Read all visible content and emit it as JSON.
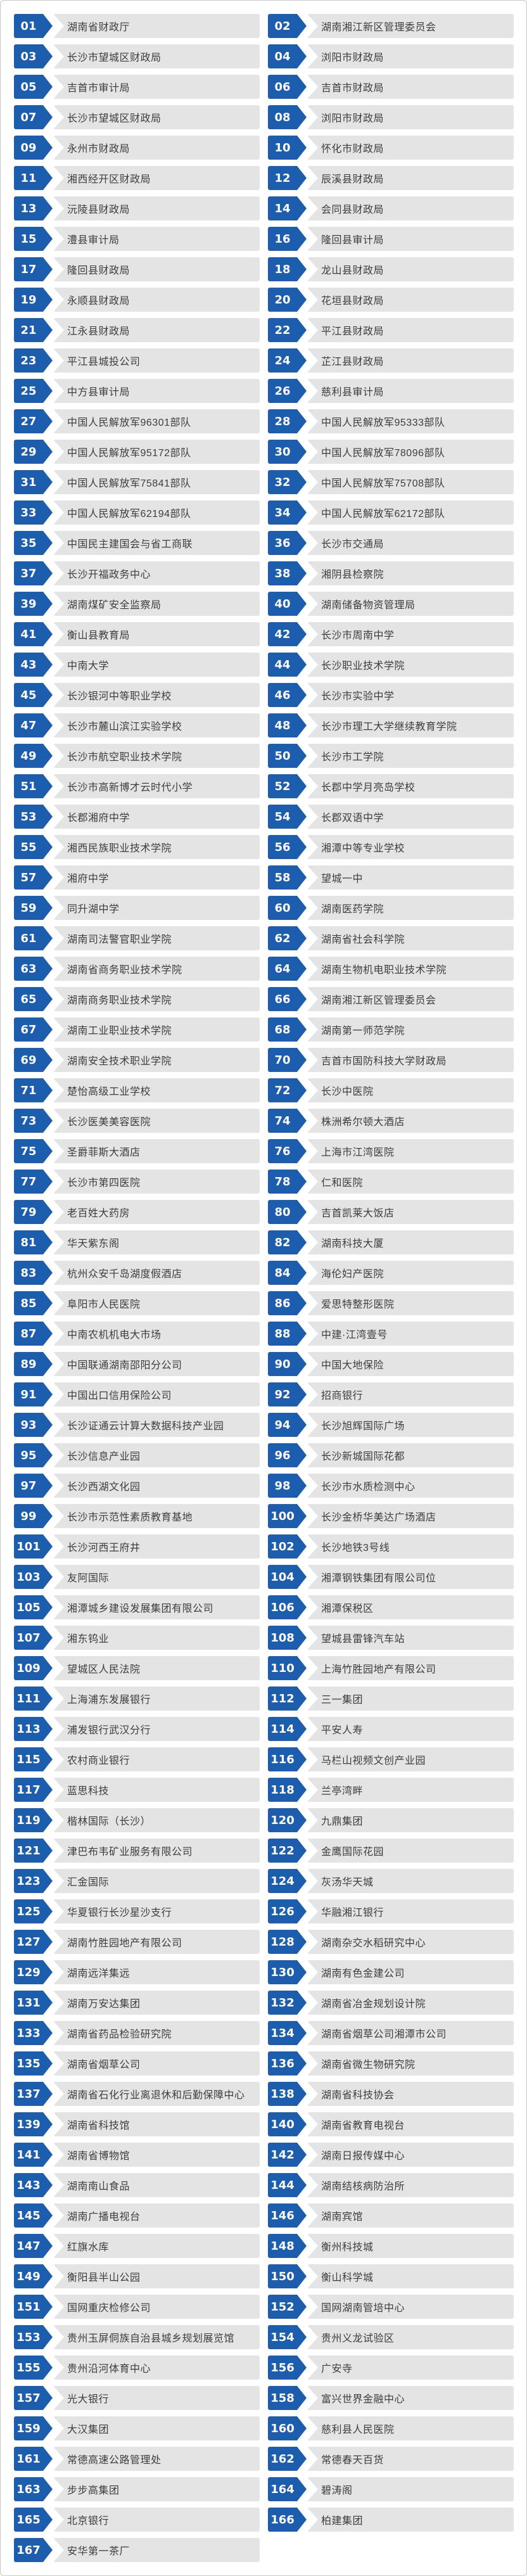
{
  "page": {
    "background": "#ffffff",
    "border_color": "#c9c9c9"
  },
  "item_style": {
    "badge_color": "#1d5dad",
    "bar_color": "#e4e4e4",
    "number_color": "#ffffff",
    "label_color": "#3d3d3d"
  },
  "items": [
    {
      "num": "01",
      "label": "湖南省财政厅"
    },
    {
      "num": "02",
      "label": "湖南湘江新区管理委员会"
    },
    {
      "num": "03",
      "label": "长沙市望城区财政局"
    },
    {
      "num": "04",
      "label": "浏阳市财政局"
    },
    {
      "num": "05",
      "label": "吉首市审计局"
    },
    {
      "num": "06",
      "label": "吉首市财政局"
    },
    {
      "num": "07",
      "label": "长沙市望城区财政局"
    },
    {
      "num": "08",
      "label": "浏阳市财政局"
    },
    {
      "num": "09",
      "label": "永州市财政局"
    },
    {
      "num": "10",
      "label": "怀化市财政局"
    },
    {
      "num": "11",
      "label": "湘西经开区财政局"
    },
    {
      "num": "12",
      "label": "辰溪县财政局"
    },
    {
      "num": "13",
      "label": "沅陵县财政局"
    },
    {
      "num": "14",
      "label": "会同县财政局"
    },
    {
      "num": "15",
      "label": "澧县审计局"
    },
    {
      "num": "16",
      "label": "隆回县审计局"
    },
    {
      "num": "17",
      "label": "隆回县财政局"
    },
    {
      "num": "18",
      "label": "龙山县财政局"
    },
    {
      "num": "19",
      "label": "永顺县财政局"
    },
    {
      "num": "20",
      "label": "花垣县财政局"
    },
    {
      "num": "21",
      "label": "江永县财政局"
    },
    {
      "num": "22",
      "label": "平江县财政局"
    },
    {
      "num": "23",
      "label": "平江县城投公司"
    },
    {
      "num": "24",
      "label": "芷江县财政局"
    },
    {
      "num": "25",
      "label": "中方县审计局"
    },
    {
      "num": "26",
      "label": "慈利县审计局"
    },
    {
      "num": "27",
      "label": "中国人民解放军96301部队"
    },
    {
      "num": "28",
      "label": "中国人民解放军95333部队"
    },
    {
      "num": "29",
      "label": "中国人民解放军95172部队"
    },
    {
      "num": "30",
      "label": "中国人民解放军78096部队"
    },
    {
      "num": "31",
      "label": "中国人民解放军75841部队"
    },
    {
      "num": "32",
      "label": "中国人民解放军75708部队"
    },
    {
      "num": "33",
      "label": "中国人民解放军62194部队"
    },
    {
      "num": "34",
      "label": "中国人民解放军62172部队"
    },
    {
      "num": "35",
      "label": "中国民主建国会与省工商联"
    },
    {
      "num": "36",
      "label": "长沙市交通局"
    },
    {
      "num": "37",
      "label": "长沙开福政务中心"
    },
    {
      "num": "38",
      "label": "湘阴县检察院"
    },
    {
      "num": "39",
      "label": "湖南煤矿安全监察局"
    },
    {
      "num": "40",
      "label": "湖南储备物资管理局"
    },
    {
      "num": "41",
      "label": "衡山县教育局"
    },
    {
      "num": "42",
      "label": "长沙市周南中学"
    },
    {
      "num": "43",
      "label": "中南大学"
    },
    {
      "num": "44",
      "label": "长沙职业技术学院"
    },
    {
      "num": "45",
      "label": "长沙银河中等职业学校"
    },
    {
      "num": "46",
      "label": "长沙市实验中学"
    },
    {
      "num": "47",
      "label": "长沙市麓山滨江实验学校"
    },
    {
      "num": "48",
      "label": "长沙市理工大学继续教育学院"
    },
    {
      "num": "49",
      "label": "长沙市航空职业技术学院"
    },
    {
      "num": "50",
      "label": "长沙市工学院"
    },
    {
      "num": "51",
      "label": "长沙市高新博才云时代小学"
    },
    {
      "num": "52",
      "label": "长郡中学月亮岛学校"
    },
    {
      "num": "53",
      "label": "长郡湘府中学"
    },
    {
      "num": "54",
      "label": "长郡双语中学"
    },
    {
      "num": "55",
      "label": "湘西民族职业技术学院"
    },
    {
      "num": "56",
      "label": "湘潭中等专业学校"
    },
    {
      "num": "57",
      "label": "湘府中学"
    },
    {
      "num": "58",
      "label": "望城一中"
    },
    {
      "num": "59",
      "label": "同升湖中学"
    },
    {
      "num": "60",
      "label": "湖南医药学院"
    },
    {
      "num": "61",
      "label": "湖南司法警官职业学院"
    },
    {
      "num": "62",
      "label": "湖南省社会科学院"
    },
    {
      "num": "63",
      "label": "湖南省商务职业技术学院"
    },
    {
      "num": "64",
      "label": "湖南生物机电职业技术学院"
    },
    {
      "num": "65",
      "label": "湖南商务职业技术学院"
    },
    {
      "num": "66",
      "label": "湖南湘江新区管理委员会"
    },
    {
      "num": "67",
      "label": "湖南工业职业技术学院"
    },
    {
      "num": "68",
      "label": "湖南第一师范学院"
    },
    {
      "num": "69",
      "label": "湖南安全技术职业学院"
    },
    {
      "num": "70",
      "label": "吉首市国防科技大学财政局"
    },
    {
      "num": "71",
      "label": "楚怡高级工业学校"
    },
    {
      "num": "72",
      "label": "长沙中医院"
    },
    {
      "num": "73",
      "label": "长沙医美美容医院"
    },
    {
      "num": "74",
      "label": "株洲希尔顿大酒店"
    },
    {
      "num": "75",
      "label": "圣爵菲斯大酒店"
    },
    {
      "num": "76",
      "label": "上海市江湾医院"
    },
    {
      "num": "77",
      "label": "长沙市第四医院"
    },
    {
      "num": "78",
      "label": "仁和医院"
    },
    {
      "num": "79",
      "label": "老百姓大药房"
    },
    {
      "num": "80",
      "label": "吉首凯莱大饭店"
    },
    {
      "num": "81",
      "label": "华天紫东阁"
    },
    {
      "num": "82",
      "label": "湖南科技大厦"
    },
    {
      "num": "83",
      "label": "杭州众安千岛湖度假酒店"
    },
    {
      "num": "84",
      "label": "海伦妇产医院"
    },
    {
      "num": "85",
      "label": "阜阳市人民医院"
    },
    {
      "num": "86",
      "label": "爱思特整形医院"
    },
    {
      "num": "87",
      "label": "中南农机机电大市场"
    },
    {
      "num": "88",
      "label": "中建·江湾壹号"
    },
    {
      "num": "89",
      "label": "中国联通湖南邵阳分公司"
    },
    {
      "num": "90",
      "label": "中国大地保险"
    },
    {
      "num": "91",
      "label": "中国出口信用保险公司"
    },
    {
      "num": "92",
      "label": "招商银行"
    },
    {
      "num": "93",
      "label": "长沙证通云计算大数据科技产业园"
    },
    {
      "num": "94",
      "label": "长沙旭辉国际广场"
    },
    {
      "num": "95",
      "label": "长沙信息产业园"
    },
    {
      "num": "96",
      "label": "长沙新城国际花都"
    },
    {
      "num": "97",
      "label": "长沙西湖文化园"
    },
    {
      "num": "98",
      "label": "长沙市水质检测中心"
    },
    {
      "num": "99",
      "label": "长沙市示范性素质教育基地"
    },
    {
      "num": "100",
      "label": "长沙金桥华美达广场酒店"
    },
    {
      "num": "101",
      "label": "长沙河西王府井"
    },
    {
      "num": "102",
      "label": "长沙地铁3号线"
    },
    {
      "num": "103",
      "label": "友阿国际"
    },
    {
      "num": "104",
      "label": "湘潭钢铁集团有限公司位"
    },
    {
      "num": "105",
      "label": "湘潭城乡建设发展集团有限公司"
    },
    {
      "num": "106",
      "label": "湘潭保税区"
    },
    {
      "num": "107",
      "label": "湘东钨业"
    },
    {
      "num": "108",
      "label": "望城县雷锋汽车站"
    },
    {
      "num": "109",
      "label": "望城区人民法院"
    },
    {
      "num": "110",
      "label": "上海竹胜园地产有限公司"
    },
    {
      "num": "111",
      "label": "上海浦东发展银行"
    },
    {
      "num": "112",
      "label": "三一集团"
    },
    {
      "num": "113",
      "label": "浦发银行武汉分行"
    },
    {
      "num": "114",
      "label": "平安人寿"
    },
    {
      "num": "115",
      "label": "农村商业银行"
    },
    {
      "num": "116",
      "label": "马栏山视频文创产业园"
    },
    {
      "num": "117",
      "label": "蓝思科技"
    },
    {
      "num": "118",
      "label": "兰亭湾畔"
    },
    {
      "num": "119",
      "label": "楷林国际（长沙）"
    },
    {
      "num": "120",
      "label": "九鼎集团"
    },
    {
      "num": "121",
      "label": "津巴布韦矿业服务有限公司"
    },
    {
      "num": "122",
      "label": "金鹰国际花园"
    },
    {
      "num": "123",
      "label": "汇金国际"
    },
    {
      "num": "124",
      "label": "灰汤华天城"
    },
    {
      "num": "125",
      "label": "华夏银行长沙星沙支行"
    },
    {
      "num": "126",
      "label": "华融湘江银行"
    },
    {
      "num": "127",
      "label": "湖南竹胜园地产有限公司"
    },
    {
      "num": "128",
      "label": "湖南杂交水稻研究中心"
    },
    {
      "num": "129",
      "label": "湖南远洋集远"
    },
    {
      "num": "130",
      "label": "湖南有色金建公司"
    },
    {
      "num": "131",
      "label": "湖南万安达集团"
    },
    {
      "num": "132",
      "label": "湖南省冶金规划设计院"
    },
    {
      "num": "133",
      "label": "湖南省药品检验研究院"
    },
    {
      "num": "134",
      "label": "湖南省烟草公司湘潭市公司"
    },
    {
      "num": "135",
      "label": "湖南省烟草公司"
    },
    {
      "num": "136",
      "label": "湖南省微生物研究院"
    },
    {
      "num": "137",
      "label": "湖南省石化行业离退休和后勤保障中心"
    },
    {
      "num": "138",
      "label": "湖南省科技协会"
    },
    {
      "num": "139",
      "label": "湖南省科技馆"
    },
    {
      "num": "140",
      "label": "湖南省教育电视台"
    },
    {
      "num": "141",
      "label": "湖南省博物馆"
    },
    {
      "num": "142",
      "label": "湖南日报传媒中心"
    },
    {
      "num": "143",
      "label": "湖南南山食品"
    },
    {
      "num": "144",
      "label": "湖南结核病防治所"
    },
    {
      "num": "145",
      "label": "湖南广播电视台"
    },
    {
      "num": "146",
      "label": "湖南宾馆"
    },
    {
      "num": "147",
      "label": "红旗水库"
    },
    {
      "num": "148",
      "label": "衡州科技城"
    },
    {
      "num": "149",
      "label": "衡阳县半山公园"
    },
    {
      "num": "150",
      "label": "衡山科学城"
    },
    {
      "num": "151",
      "label": "国网重庆检修公司"
    },
    {
      "num": "152",
      "label": "国网湖南管培中心"
    },
    {
      "num": "153",
      "label": "贵州玉屏侗族自治县城乡规划展览馆"
    },
    {
      "num": "154",
      "label": "贵州义龙试验区"
    },
    {
      "num": "155",
      "label": "贵州沿河体育中心"
    },
    {
      "num": "156",
      "label": "广安寺"
    },
    {
      "num": "157",
      "label": "光大银行"
    },
    {
      "num": "158",
      "label": "富兴世界金融中心"
    },
    {
      "num": "159",
      "label": "大汉集团"
    },
    {
      "num": "160",
      "label": "慈利县人民医院"
    },
    {
      "num": "161",
      "label": "常德高速公路管理处"
    },
    {
      "num": "162",
      "label": "常德春天百货"
    },
    {
      "num": "163",
      "label": "步步高集团"
    },
    {
      "num": "164",
      "label": "碧涛阁"
    },
    {
      "num": "165",
      "label": "北京银行"
    },
    {
      "num": "166",
      "label": "柏建集团"
    },
    {
      "num": "167",
      "label": "安华第一茶厂"
    }
  ]
}
